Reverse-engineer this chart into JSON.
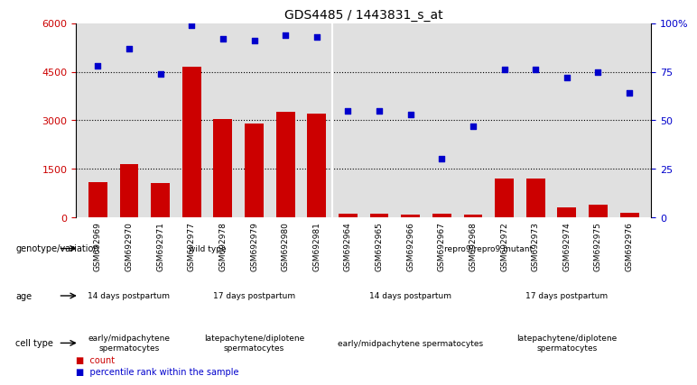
{
  "title": "GDS4485 / 1443831_s_at",
  "samples": [
    "GSM692969",
    "GSM692970",
    "GSM692971",
    "GSM692977",
    "GSM692978",
    "GSM692979",
    "GSM692980",
    "GSM692981",
    "GSM692964",
    "GSM692965",
    "GSM692966",
    "GSM692967",
    "GSM692968",
    "GSM692972",
    "GSM692973",
    "GSM692974",
    "GSM692975",
    "GSM692976"
  ],
  "counts": [
    1100,
    1650,
    1050,
    4650,
    3050,
    2900,
    3250,
    3200,
    100,
    120,
    80,
    100,
    90,
    1200,
    1200,
    300,
    380,
    130
  ],
  "percentiles": [
    78,
    87,
    74,
    99,
    92,
    91,
    94,
    93,
    55,
    55,
    53,
    30,
    47,
    76,
    76,
    72,
    75,
    64
  ],
  "ylim_left": [
    0,
    6000
  ],
  "ylim_right": [
    0,
    100
  ],
  "yticks_left": [
    0,
    1500,
    3000,
    4500,
    6000
  ],
  "ytick_labels_left": [
    "0",
    "1500",
    "3000",
    "4500",
    "6000"
  ],
  "yticks_right": [
    0,
    25,
    50,
    75,
    100
  ],
  "ytick_labels_right": [
    "0",
    "25",
    "50",
    "75",
    "100%"
  ],
  "bar_color": "#cc0000",
  "dot_color": "#0000cc",
  "bg_color": "#e0e0e0",
  "genotype_row": {
    "label": "genotype/variation",
    "groups": [
      {
        "text": "wild type",
        "start": 0,
        "end": 8,
        "color": "#90ee90"
      },
      {
        "text": "repro9/repro9 mutant",
        "start": 8,
        "end": 18,
        "color": "#50c850"
      }
    ]
  },
  "age_row": {
    "label": "age",
    "groups": [
      {
        "text": "14 days postpartum",
        "start": 0,
        "end": 3,
        "color": "#b0a0d0"
      },
      {
        "text": "17 days postpartum",
        "start": 3,
        "end": 8,
        "color": "#8070c0"
      },
      {
        "text": "14 days postpartum",
        "start": 8,
        "end": 13,
        "color": "#8070c0"
      },
      {
        "text": "17 days postpartum",
        "start": 13,
        "end": 18,
        "color": "#8070c0"
      }
    ]
  },
  "celltype_row": {
    "label": "cell type",
    "groups": [
      {
        "text": "early/midpachytene\nspermatocytes",
        "start": 0,
        "end": 3,
        "color": "#e08080"
      },
      {
        "text": "latepachytene/diplotene\nspermatocytes",
        "start": 3,
        "end": 8,
        "color": "#cc5555"
      },
      {
        "text": "early/midpachytene spermatocytes",
        "start": 8,
        "end": 13,
        "color": "#e08080"
      },
      {
        "text": "latepachytene/diplotene\nspermatocytes",
        "start": 13,
        "end": 18,
        "color": "#cc5555"
      }
    ]
  }
}
